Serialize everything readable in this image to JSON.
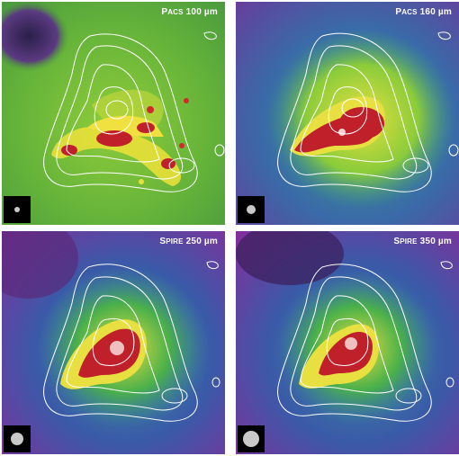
{
  "panels": [
    {
      "instrument_caps": "P",
      "instrument_rest": "ACS",
      "band": "100 µm",
      "beam_icon": "beam-size-icon"
    },
    {
      "instrument_caps": "P",
      "instrument_rest": "ACS",
      "band": "160 µm",
      "beam_icon": "beam-size-icon"
    },
    {
      "instrument_caps": "S",
      "instrument_rest": "PIRE",
      "band": "250 µm",
      "beam_icon": "beam-size-icon"
    },
    {
      "instrument_caps": "S",
      "instrument_rest": "PIRE",
      "band": "350 µm",
      "beam_icon": "beam-size-icon"
    }
  ],
  "colors": {
    "contour": "#ffffff",
    "beam_box": "#000000",
    "beam_dot": "#c9c9c9"
  }
}
